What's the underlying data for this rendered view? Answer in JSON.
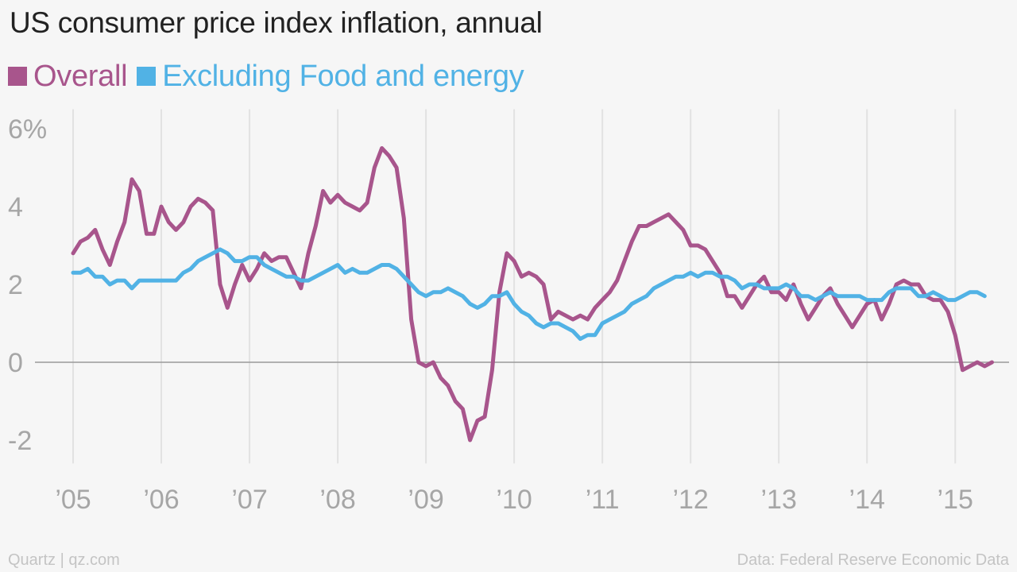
{
  "chart_data": {
    "type": "line",
    "title": "US consumer price index inflation, annual",
    "xlabel": "",
    "ylabel": "",
    "x_range": [
      2005.0,
      2015.25
    ],
    "ylim": [
      -2.6,
      6.5
    ],
    "y_ticks": [
      {
        "value": 6,
        "label": "6%"
      },
      {
        "value": 4,
        "label": "4"
      },
      {
        "value": 2,
        "label": "2"
      },
      {
        "value": 0,
        "label": "0"
      },
      {
        "value": -2,
        "label": "-2"
      }
    ],
    "x_ticks": [
      {
        "value": 2005,
        "label": "’05"
      },
      {
        "value": 2006,
        "label": "’06"
      },
      {
        "value": 2007,
        "label": "’07"
      },
      {
        "value": 2008,
        "label": "’08"
      },
      {
        "value": 2009,
        "label": "’09"
      },
      {
        "value": 2010,
        "label": "’10"
      },
      {
        "value": 2011,
        "label": "’11"
      },
      {
        "value": 2012,
        "label": "’12"
      },
      {
        "value": 2013,
        "label": "’13"
      },
      {
        "value": 2014,
        "label": "’14"
      },
      {
        "value": 2015,
        "label": "’15"
      }
    ],
    "grid": "vertical",
    "legend_position": "top-left",
    "series": [
      {
        "name": "Overall",
        "color": "#a8558c",
        "start": "2005-01",
        "frequency": "monthly",
        "values": [
          2.8,
          3.1,
          3.2,
          3.4,
          2.9,
          2.5,
          3.1,
          3.6,
          4.7,
          4.4,
          3.3,
          3.3,
          4.0,
          3.6,
          3.4,
          3.6,
          4.0,
          4.2,
          4.1,
          3.9,
          2.0,
          1.4,
          2.0,
          2.5,
          2.1,
          2.4,
          2.8,
          2.6,
          2.7,
          2.7,
          2.3,
          1.9,
          2.8,
          3.5,
          4.4,
          4.1,
          4.3,
          4.1,
          4.0,
          3.9,
          4.1,
          5.0,
          5.5,
          5.3,
          5.0,
          3.7,
          1.1,
          0.0,
          -0.1,
          0.0,
          -0.4,
          -0.6,
          -1.0,
          -1.2,
          -2.0,
          -1.5,
          -1.4,
          -0.2,
          1.8,
          2.8,
          2.6,
          2.2,
          2.3,
          2.2,
          2.0,
          1.1,
          1.3,
          1.2,
          1.1,
          1.2,
          1.1,
          1.4,
          1.6,
          1.8,
          2.1,
          2.6,
          3.1,
          3.5,
          3.5,
          3.6,
          3.7,
          3.8,
          3.6,
          3.4,
          3.0,
          3.0,
          2.9,
          2.6,
          2.3,
          1.7,
          1.7,
          1.4,
          1.7,
          2.0,
          2.2,
          1.8,
          1.8,
          1.6,
          2.0,
          1.5,
          1.1,
          1.4,
          1.7,
          1.9,
          1.5,
          1.2,
          0.9,
          1.2,
          1.5,
          1.6,
          1.1,
          1.5,
          2.0,
          2.1,
          2.0,
          2.0,
          1.7,
          1.6,
          1.6,
          1.3,
          0.7,
          -0.2,
          -0.1,
          0.0,
          -0.1,
          0.0
        ]
      },
      {
        "name": "Excluding Food and energy",
        "color": "#51b2e5",
        "start": "2005-01",
        "frequency": "monthly",
        "values": [
          2.3,
          2.3,
          2.4,
          2.2,
          2.2,
          2.0,
          2.1,
          2.1,
          1.9,
          2.1,
          2.1,
          2.1,
          2.1,
          2.1,
          2.1,
          2.3,
          2.4,
          2.6,
          2.7,
          2.8,
          2.9,
          2.8,
          2.6,
          2.6,
          2.7,
          2.7,
          2.5,
          2.4,
          2.3,
          2.2,
          2.2,
          2.1,
          2.1,
          2.2,
          2.3,
          2.4,
          2.5,
          2.3,
          2.4,
          2.3,
          2.3,
          2.4,
          2.5,
          2.5,
          2.4,
          2.2,
          2.0,
          1.8,
          1.7,
          1.8,
          1.8,
          1.9,
          1.8,
          1.7,
          1.5,
          1.4,
          1.5,
          1.7,
          1.7,
          1.8,
          1.5,
          1.3,
          1.2,
          1.0,
          0.9,
          1.0,
          1.0,
          0.9,
          0.8,
          0.6,
          0.7,
          0.7,
          1.0,
          1.1,
          1.2,
          1.3,
          1.5,
          1.6,
          1.7,
          1.9,
          2.0,
          2.1,
          2.2,
          2.2,
          2.3,
          2.2,
          2.3,
          2.3,
          2.2,
          2.2,
          2.1,
          1.9,
          2.0,
          2.0,
          1.9,
          1.9,
          1.9,
          2.0,
          1.9,
          1.7,
          1.7,
          1.6,
          1.7,
          1.8,
          1.7,
          1.7,
          1.7,
          1.7,
          1.6,
          1.6,
          1.6,
          1.8,
          1.9,
          1.9,
          1.9,
          1.7,
          1.7,
          1.8,
          1.7,
          1.6,
          1.6,
          1.7,
          1.8,
          1.8,
          1.7
        ]
      }
    ]
  },
  "footer": {
    "source_left": "Quartz | qz.com",
    "source_right": "Data: Federal Reserve Economic Data"
  }
}
